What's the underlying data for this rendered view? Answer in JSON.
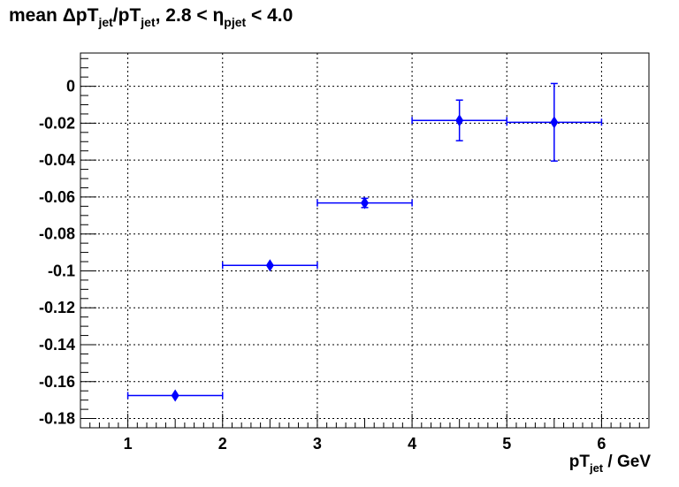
{
  "chart_data": {
    "type": "scatter",
    "title_parts": {
      "prefix": "mean ",
      "delta": "Δ",
      "pt1": "pT",
      "sub1": "jet",
      "slash": "/pT",
      "sub2": "jet",
      "mid": ", 2.8 < ",
      "eta": "η",
      "sub3": "pjet",
      "suffix": " < 4.0"
    },
    "xlabel_parts": {
      "main": "pT",
      "sub": "jet",
      "suffix": "  / GeV"
    },
    "xlim": [
      0.5,
      6.5
    ],
    "ylim": [
      -0.185,
      0.018
    ],
    "xticks": [
      1,
      2,
      3,
      4,
      5,
      6
    ],
    "yticks": [
      0,
      -0.02,
      -0.04,
      -0.06,
      -0.08,
      -0.1,
      -0.12,
      -0.14,
      -0.16,
      -0.18
    ],
    "ytick_labels": [
      "0",
      "-0.02",
      "-0.04",
      "-0.06",
      "-0.08",
      "-0.1",
      "-0.12",
      "-0.14",
      "-0.16",
      "-0.18"
    ],
    "grid": true,
    "marker_color": "#0000ff",
    "points": [
      {
        "x": 1.5,
        "y": -0.1675,
        "xerr": 0.5,
        "yerr": 0.0
      },
      {
        "x": 2.5,
        "y": -0.097,
        "xerr": 0.5,
        "yerr": 0.0
      },
      {
        "x": 3.5,
        "y": -0.0632,
        "xerr": 0.5,
        "yerr": 0.0025
      },
      {
        "x": 4.5,
        "y": -0.0185,
        "xerr": 0.5,
        "yerr": 0.011
      },
      {
        "x": 5.5,
        "y": -0.0195,
        "xerr": 0.5,
        "yerr": 0.021
      }
    ]
  }
}
